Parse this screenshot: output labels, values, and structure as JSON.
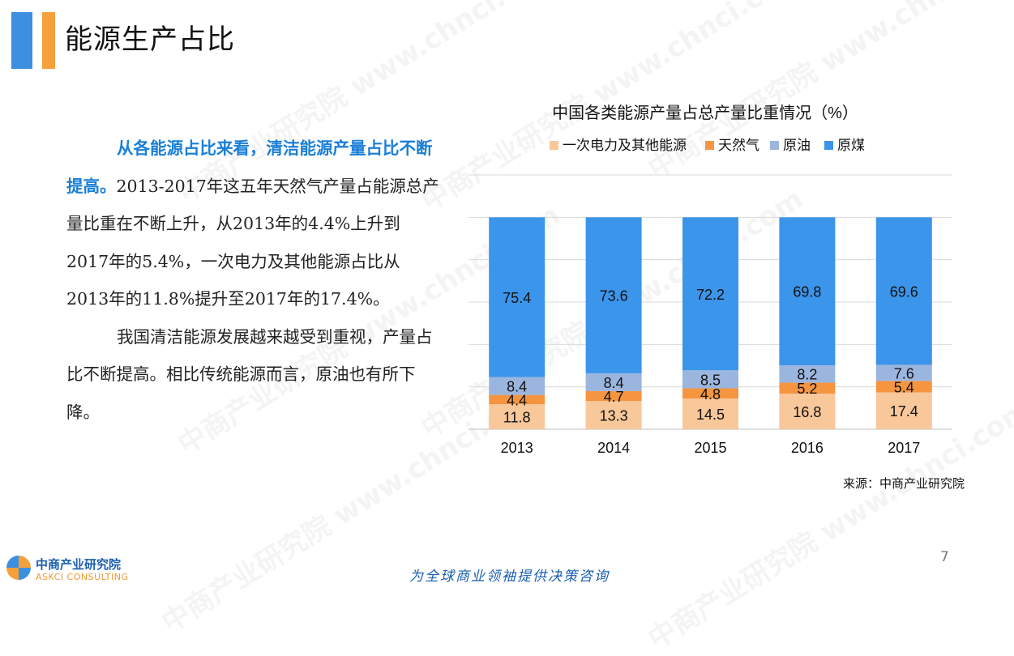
{
  "slide": {
    "title": "能源生产占比",
    "page_number": "7",
    "source": "来源：中商产业研究院",
    "slogan": "为全球商业领袖提供决策咨询",
    "logo": {
      "name_cn": "中商产业研究院",
      "name_en": "ASKCI CONSULTING"
    },
    "watermark": "中商产业研究院 www.chnci.com"
  },
  "body": {
    "p1_highlight": "从各能源占比来看，清洁能源产量占比不断提高。",
    "p1_rest": "2013-2017年这五年天然气产量占能源总产量比重在不断上升，从2013年的4.4%上升到2017年的5.4%，一次电力及其他能源占比从2013年的11.8%提升至2017年的17.4%。",
    "p2": "我国清洁能源发展越来越受到重视，产量占比不断提高。相比传统能源而言，原油也有所下降。"
  },
  "chart_data": {
    "type": "bar",
    "stacked": true,
    "title": "中国各类能源产量占总产量比重情况（%）",
    "categories": [
      "2013",
      "2014",
      "2015",
      "2016",
      "2017"
    ],
    "series": [
      {
        "name": "一次电力及其他能源",
        "color": "#f8c79a",
        "values": [
          11.8,
          13.3,
          14.5,
          16.8,
          17.4
        ]
      },
      {
        "name": "天然气",
        "color": "#f5953f",
        "values": [
          4.4,
          4.7,
          4.8,
          5.2,
          5.4
        ]
      },
      {
        "name": "原油",
        "color": "#9bb6de",
        "values": [
          8.4,
          8.4,
          8.5,
          8.2,
          7.6
        ]
      },
      {
        "name": "原煤",
        "color": "#3b95ea",
        "values": [
          75.4,
          73.6,
          72.2,
          69.8,
          69.6
        ]
      }
    ],
    "ylim": [
      0,
      120
    ],
    "grid": true,
    "legend_position": "top"
  }
}
